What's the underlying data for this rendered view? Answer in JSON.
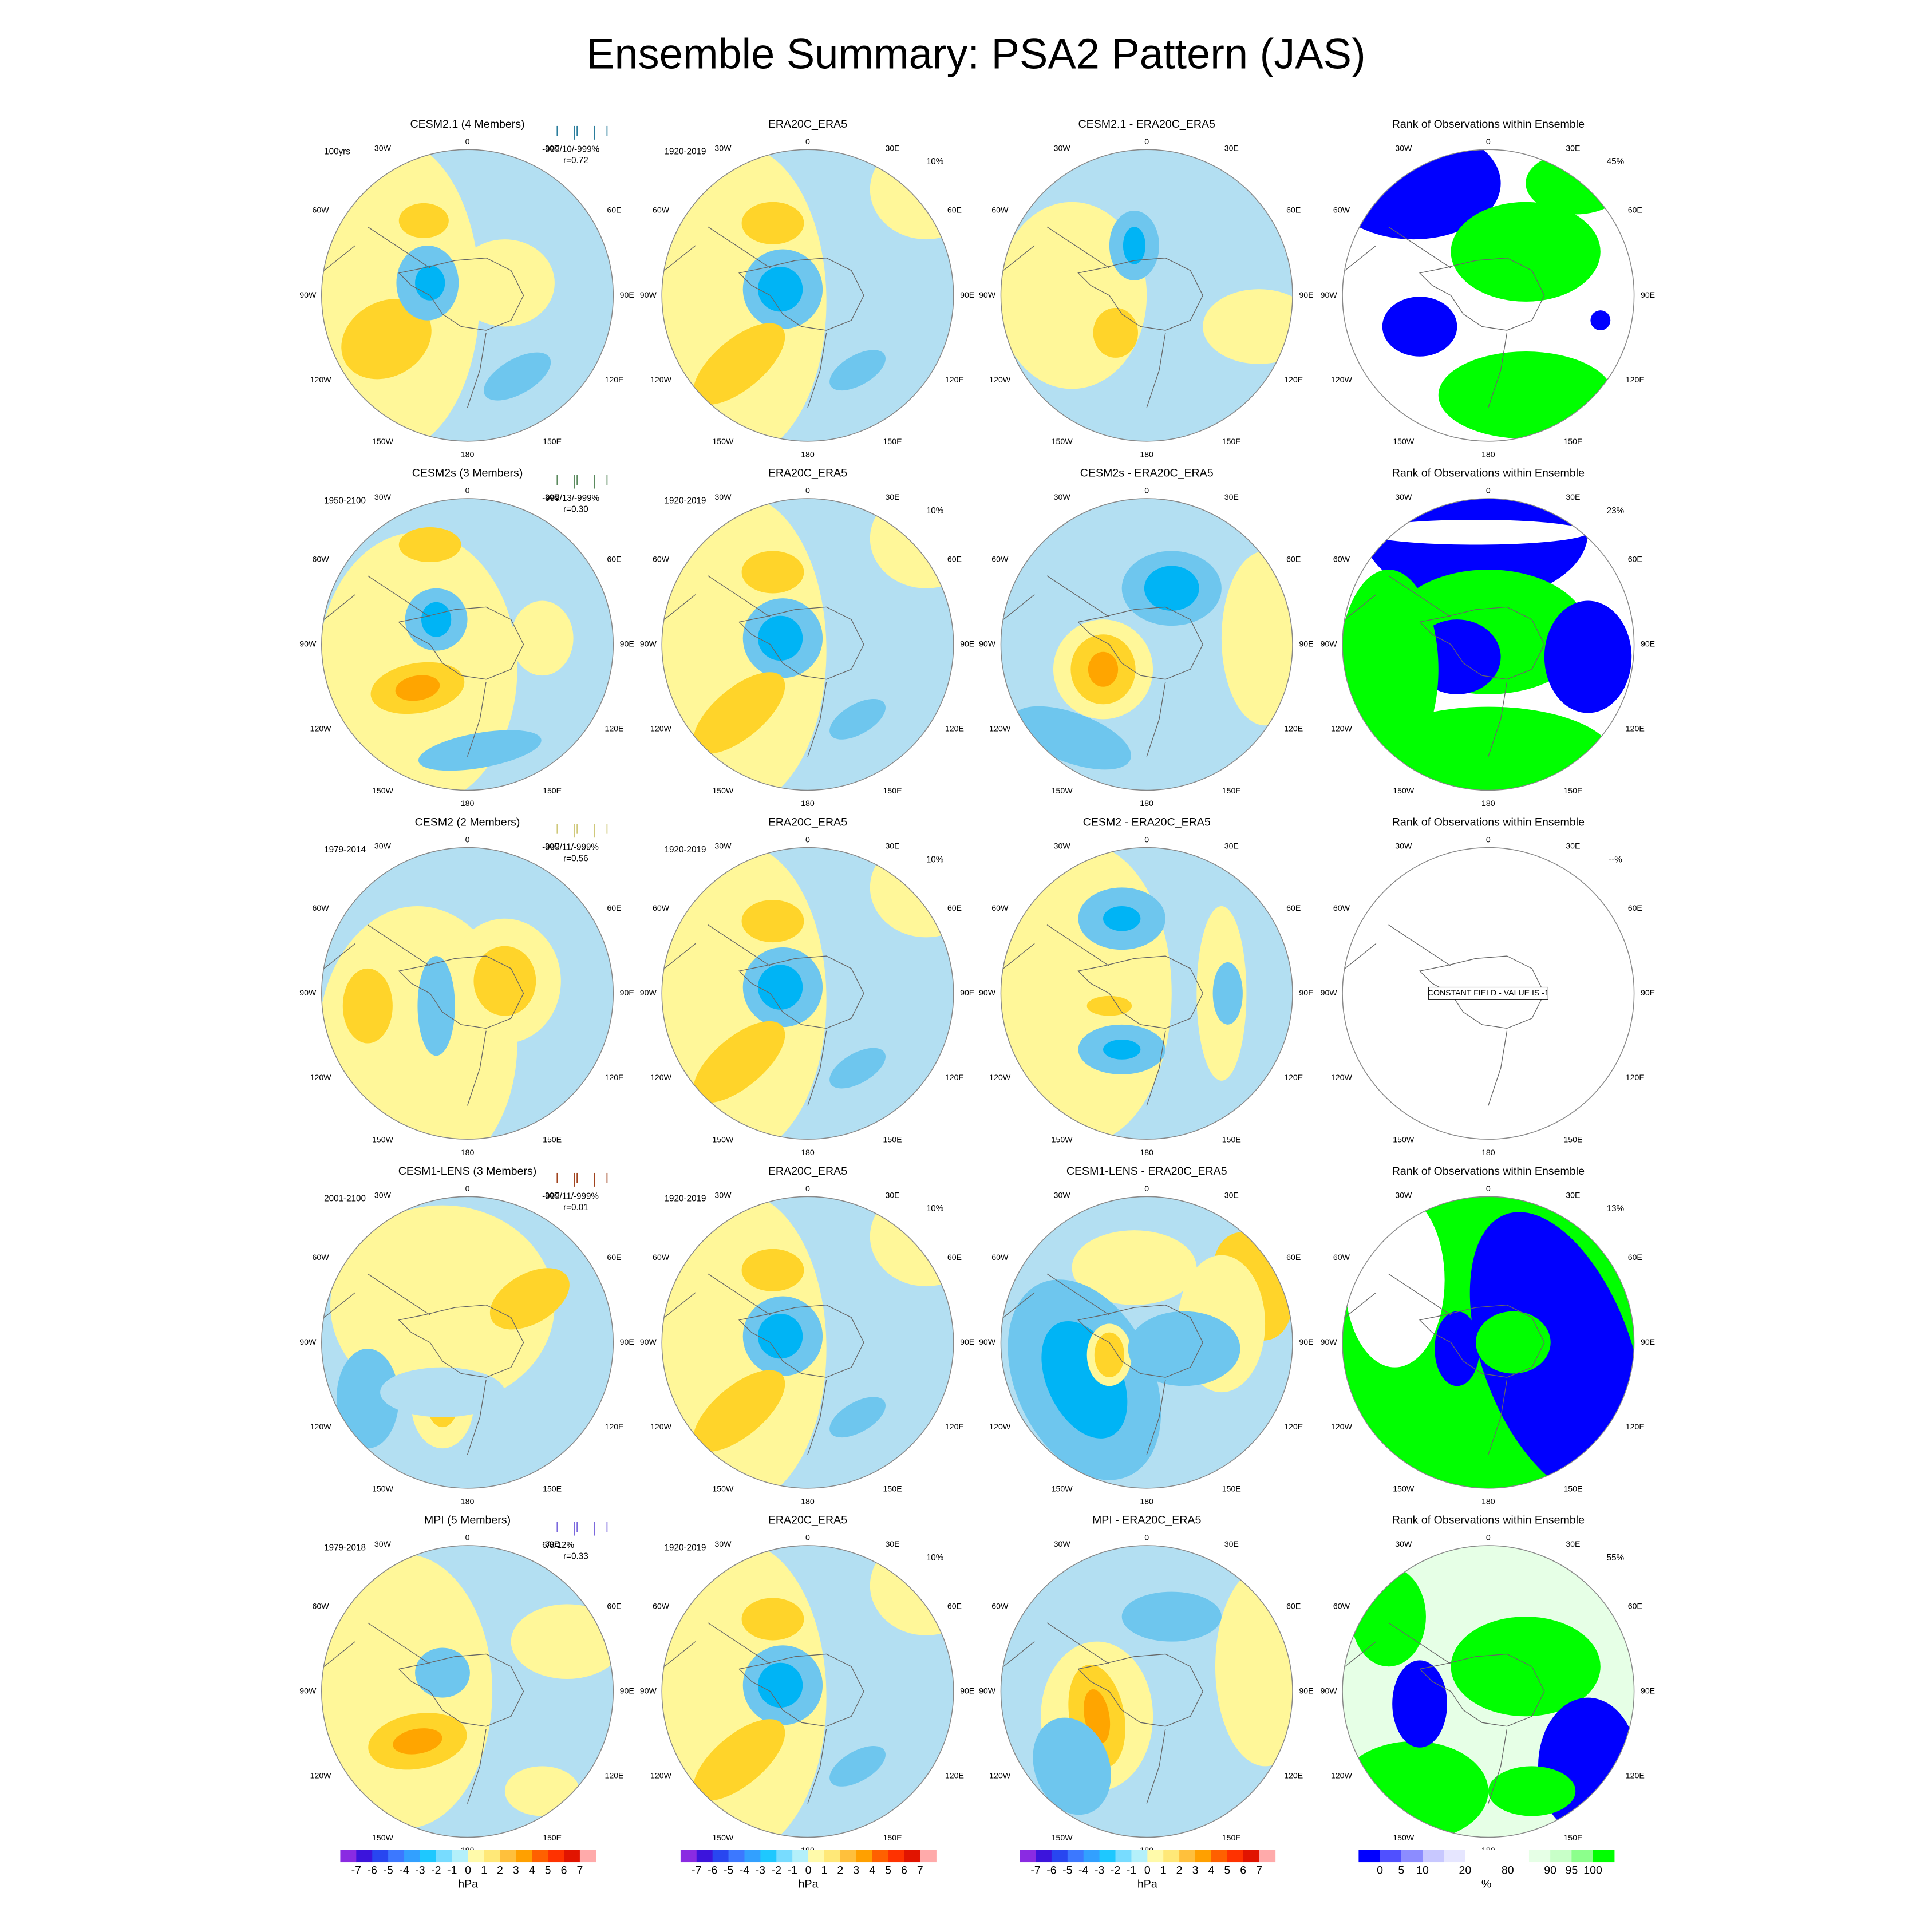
{
  "title": "Ensemble Summary: PSA2 Pattern (JAS)",
  "lon_labels": [
    "0",
    "30E",
    "60E",
    "90E",
    "120E",
    "150E",
    "180",
    "150W",
    "120W",
    "90W",
    "60W",
    "30W"
  ],
  "rows": [
    {
      "model": {
        "title": "CESM2.1 (4 Members)",
        "color": "#2a7d9c",
        "period": "100yrs",
        "stats": "-999/10/-999%",
        "r": "r=0.72"
      },
      "obs": {
        "title": "ERA20C_ERA5",
        "period": "1920-2019",
        "pct": "10%"
      },
      "diff": {
        "title": "CESM2.1 - ERA20C_ERA5"
      },
      "rank": {
        "title": "Rank of Observations within Ensemble",
        "pct": "45%"
      }
    },
    {
      "model": {
        "title": "CESM2s (3 Members)",
        "color": "#5a8a5e",
        "period": "1950-2100",
        "stats": "-999/13/-999%",
        "r": "r=0.30"
      },
      "obs": {
        "title": "ERA20C_ERA5",
        "period": "1920-2019",
        "pct": "10%"
      },
      "diff": {
        "title": "CESM2s - ERA20C_ERA5"
      },
      "rank": {
        "title": "Rank of Observations within Ensemble",
        "pct": "23%"
      }
    },
    {
      "model": {
        "title": "CESM2 (2 Members)",
        "color": "#cfc87a",
        "period": "1979-2014",
        "stats": "-999/11/-999%",
        "r": "r=0.56"
      },
      "obs": {
        "title": "ERA20C_ERA5",
        "period": "1920-2019",
        "pct": "10%"
      },
      "diff": {
        "title": "CESM2 - ERA20C_ERA5"
      },
      "rank": {
        "title": "Rank of Observations within Ensemble",
        "pct": "--%",
        "note": "CONSTANT FIELD - VALUE IS -1"
      }
    },
    {
      "model": {
        "title": "CESM1-LENS (3 Members)",
        "color": "#a0431e",
        "period": "2001-2100",
        "stats": "-999/11/-999%",
        "r": "r=0.01"
      },
      "obs": {
        "title": "ERA20C_ERA5",
        "period": "1920-2019",
        "pct": "10%"
      },
      "diff": {
        "title": "CESM1-LENS - ERA20C_ERA5"
      },
      "rank": {
        "title": "Rank of Observations within Ensemble",
        "pct": "13%"
      }
    },
    {
      "model": {
        "title": "MPI (5 Members)",
        "color": "#7b68dd",
        "period": "1979-2018",
        "stats": "6/8/12%",
        "r": "r=0.33"
      },
      "obs": {
        "title": "ERA20C_ERA5",
        "period": "1920-2019",
        "pct": "10%"
      },
      "diff": {
        "title": "MPI - ERA20C_ERA5"
      },
      "rank": {
        "title": "Rank of Observations within Ensemble",
        "pct": "55%"
      }
    }
  ],
  "colorbars": [
    {
      "labels": [
        -7,
        -6,
        -5,
        -4,
        -3,
        -2,
        -1,
        0,
        1,
        2,
        3,
        4,
        5,
        6,
        7
      ],
      "label_slots": [
        1,
        2,
        3,
        4,
        5,
        6,
        7,
        8,
        9,
        10,
        11,
        12,
        13,
        14,
        15
      ],
      "units": "hPa",
      "colors": [
        "#8a2be2",
        "#3c14dc",
        "#2846f0",
        "#3c78ff",
        "#32a0ff",
        "#1ec8ff",
        "#78dcff",
        "#b4f0fa",
        "#fffaaa",
        "#ffe878",
        "#ffc03c",
        "#ffa000",
        "#ff6000",
        "#ff3200",
        "#e11400",
        "#ffaaaa"
      ]
    },
    {
      "labels": [
        -7,
        -6,
        -5,
        -4,
        -3,
        -2,
        -1,
        0,
        1,
        2,
        3,
        4,
        5,
        6,
        7
      ],
      "label_slots": [
        1,
        2,
        3,
        4,
        5,
        6,
        7,
        8,
        9,
        10,
        11,
        12,
        13,
        14,
        15
      ],
      "units": "hPa",
      "colors": [
        "#8a2be2",
        "#3c14dc",
        "#2846f0",
        "#3c78ff",
        "#32a0ff",
        "#1ec8ff",
        "#78dcff",
        "#b4f0fa",
        "#fffaaa",
        "#ffe878",
        "#ffc03c",
        "#ffa000",
        "#ff6000",
        "#ff3200",
        "#e11400",
        "#ffaaaa"
      ]
    },
    {
      "labels": [
        -7,
        -6,
        -5,
        -4,
        -3,
        -2,
        -1,
        0,
        1,
        2,
        3,
        4,
        5,
        6,
        7
      ],
      "label_slots": [
        1,
        2,
        3,
        4,
        5,
        6,
        7,
        8,
        9,
        10,
        11,
        12,
        13,
        14,
        15
      ],
      "units": "hPa",
      "colors": [
        "#8a2be2",
        "#3c14dc",
        "#2846f0",
        "#3c78ff",
        "#32a0ff",
        "#1ec8ff",
        "#78dcff",
        "#b4f0fa",
        "#fffaaa",
        "#ffe878",
        "#ffc03c",
        "#ffa000",
        "#ff6000",
        "#ff3200",
        "#e11400",
        "#ffaaaa"
      ]
    },
    {
      "labels": [
        0,
        5,
        10,
        20,
        80,
        90,
        95,
        100
      ],
      "label_slots": [
        1,
        2,
        3,
        5,
        7,
        9,
        10,
        11
      ],
      "units": "%",
      "colors": [
        "#0000ff",
        "#5050ff",
        "#8c8cff",
        "#c8c8ff",
        "#e6e6ff",
        "#ffffff",
        "#ffffff",
        "#ffffff",
        "#e6ffe6",
        "#c8ffc8",
        "#8cff8c",
        "#00ff00"
      ]
    }
  ]
}
